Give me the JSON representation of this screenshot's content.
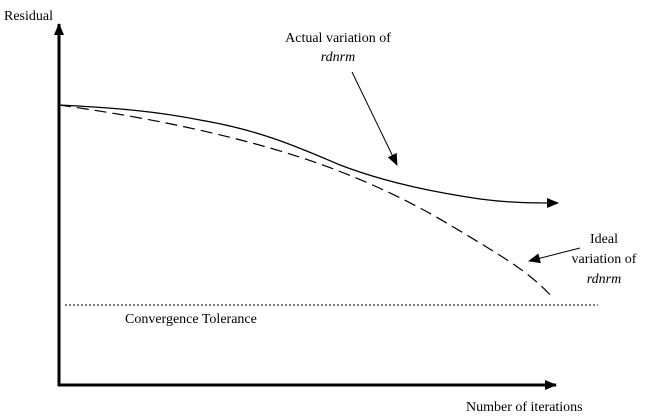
{
  "axes": {
    "y_label": "Residual",
    "x_label": "Number of iterations"
  },
  "annotations": {
    "actual": {
      "line1": "Actual variation of",
      "line2": "rdnrm"
    },
    "ideal": {
      "line1": "Ideal",
      "line2": "variation of",
      "line3": "rdnrm"
    }
  },
  "tolerance_label": "Convergence Tolerance"
}
